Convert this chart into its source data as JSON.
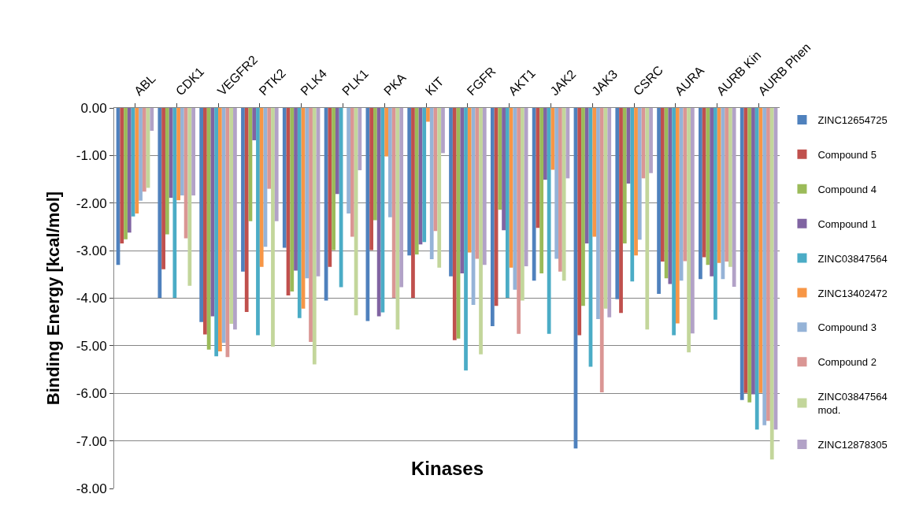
{
  "chart_data": {
    "type": "bar",
    "xlabel": "Kinases",
    "ylabel": "Binding Energy [kcal/mol]",
    "categories": [
      "ABL",
      "CDK1",
      "VEGFR2",
      "PTK2",
      "PLK4",
      "PLK1",
      "PKA",
      "KIT",
      "FGFR",
      "AKT1",
      "JAK2",
      "JAK3",
      "CSRC",
      "AURA",
      "AURB Kin",
      "AURB Phen"
    ],
    "series": [
      {
        "name": "ZINC12654725",
        "color": "#4f81bd",
        "values": [
          -3.3,
          -3.99,
          -4.5,
          -3.44,
          -2.94,
          -4.05,
          -4.48,
          -3.1,
          -3.54,
          -4.59,
          -3.63,
          -7.16,
          -4.02,
          -3.91,
          -3.6,
          -6.14
        ]
      },
      {
        "name": "Compound 5",
        "color": "#c0504d",
        "values": [
          -2.85,
          -3.39,
          -4.76,
          -4.29,
          -3.94,
          -3.34,
          -2.99,
          -3.99,
          -4.88,
          -4.16,
          -2.52,
          -4.78,
          -4.31,
          -3.23,
          -3.14,
          -5.99
        ]
      },
      {
        "name": "Compound 4",
        "color": "#9bbb59",
        "values": [
          -2.76,
          -2.66,
          -5.08,
          -2.38,
          -3.86,
          -2.99,
          -2.36,
          -3.08,
          -4.85,
          -2.14,
          -3.48,
          -4.16,
          -2.85,
          -3.58,
          -3.3,
          -6.19
        ]
      },
      {
        "name": "Compound 1",
        "color": "#8064a2",
        "values": [
          -2.62,
          -1.89,
          -4.38,
          -0.68,
          -3.42,
          -1.81,
          -4.38,
          -2.87,
          -3.48,
          -2.57,
          -1.51,
          -2.85,
          -1.59,
          -3.7,
          -3.54,
          -6.02
        ]
      },
      {
        "name": "ZINC03847564",
        "color": "#4bacc6",
        "values": [
          -2.28,
          -3.99,
          -5.22,
          -4.78,
          -4.42,
          -3.77,
          -4.3,
          -2.82,
          -5.52,
          -3.99,
          -4.75,
          -5.44,
          -3.65,
          -4.78,
          -4.45,
          -6.76
        ]
      },
      {
        "name": "ZINC13402472",
        "color": "#f79646",
        "values": [
          -2.22,
          -1.94,
          -5.12,
          -3.34,
          -4.22,
          null,
          -1.02,
          -0.29,
          -3.04,
          -3.36,
          -1.3,
          -2.71,
          -3.1,
          -4.53,
          -3.26,
          -5.99
        ]
      },
      {
        "name": "Compound 3",
        "color": "#95b3d7",
        "values": [
          -1.95,
          -1.84,
          -4.94,
          -2.92,
          -3.58,
          -2.22,
          -2.3,
          -3.18,
          -4.14,
          -3.82,
          -3.17,
          -4.44,
          -2.77,
          -3.63,
          -3.6,
          -6.67
        ]
      },
      {
        "name": "Compound 2",
        "color": "#da9694",
        "values": [
          -1.76,
          -2.74,
          -5.24,
          -1.7,
          -4.92,
          -2.71,
          -3.99,
          -2.59,
          -3.17,
          -4.75,
          -3.44,
          -5.98,
          -1.48,
          -3.22,
          -3.23,
          -6.58
        ]
      },
      {
        "name": "ZINC03847564 mod.",
        "color": "#c3d69b",
        "values": [
          -1.68,
          -3.74,
          -4.54,
          -5.02,
          -5.39,
          -4.36,
          -4.66,
          -3.36,
          -5.18,
          -4.05,
          -3.63,
          -4.22,
          -4.66,
          -5.14,
          -3.34,
          -7.39
        ]
      },
      {
        "name": "ZINC12878305",
        "color": "#b2a2c7",
        "values": [
          -0.48,
          -1.84,
          -4.66,
          -2.38,
          -3.54,
          -1.31,
          -3.77,
          -0.95,
          -3.3,
          -3.33,
          -1.48,
          -4.4,
          -1.37,
          -4.74,
          -3.76,
          -6.76
        ]
      }
    ],
    "ylim": [
      -8,
      0
    ],
    "yticks": [
      {
        "value": 0,
        "label": "0.00"
      },
      {
        "value": -1,
        "label": "-1.00"
      },
      {
        "value": -2,
        "label": "-2.00"
      },
      {
        "value": -3,
        "label": "-3.00"
      },
      {
        "value": -4,
        "label": "-4.00"
      },
      {
        "value": -5,
        "label": "-5.00"
      },
      {
        "value": -6,
        "label": "-6.00"
      },
      {
        "value": -7,
        "label": "-7.00"
      },
      {
        "value": -8,
        "label": "-8.00"
      }
    ],
    "grid": "y",
    "legend": "right"
  }
}
